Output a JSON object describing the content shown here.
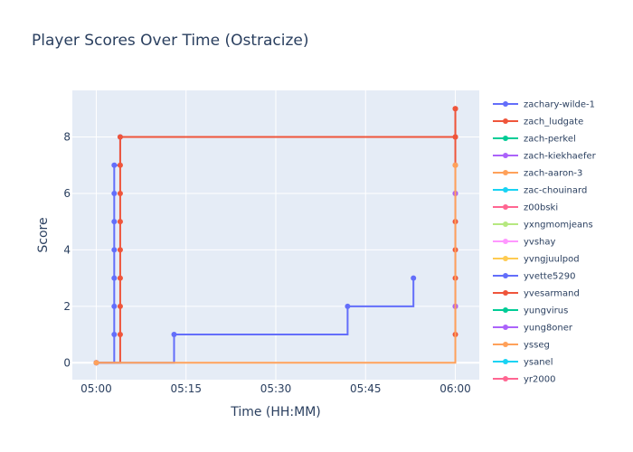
{
  "chart_data": {
    "type": "line",
    "line_shape": "step",
    "title": "Player Scores Over Time (Ostracize)",
    "xlabel": "Time (HH:MM)",
    "ylabel": "Score",
    "xlim": [
      "04:56",
      "06:04"
    ],
    "ylim": [
      -0.6,
      9.65
    ],
    "x_ticks": [
      "05:00",
      "05:15",
      "05:30",
      "05:45",
      "06:00"
    ],
    "y_ticks": [
      0,
      2,
      4,
      6,
      8
    ],
    "grid": true,
    "legend_position": "right",
    "legend_entries": [
      "zachary-wilde-1",
      "zach_ludgate",
      "zach-perkel",
      "zach-kiekhaefer",
      "zach-aaron-3",
      "zac-chouinard",
      "z00bski",
      "yxngmomjeans",
      "yvshay",
      "yvngjuulpod",
      "yvette5290",
      "yvesarmand",
      "yungvirus",
      "yung8oner",
      "ysseg",
      "ysanel",
      "yr2000"
    ],
    "colors": [
      "#636efa",
      "#ef553b",
      "#00cc96",
      "#ab63fa",
      "#ffa15a",
      "#19d3f3",
      "#ff6692",
      "#b6e880",
      "#ff97ff",
      "#fecb52"
    ],
    "plot_background": "#e5ecf6",
    "series": [
      {
        "name": "zachary-wilde-1",
        "color": "#636efa",
        "points": [
          {
            "x": "05:00",
            "y": 0
          },
          {
            "x": "05:03",
            "y": 1
          },
          {
            "x": "05:03",
            "y": 2
          },
          {
            "x": "05:03",
            "y": 3
          },
          {
            "x": "05:03",
            "y": 4
          },
          {
            "x": "05:03",
            "y": 5
          },
          {
            "x": "05:03",
            "y": 6
          },
          {
            "x": "05:03",
            "y": 7
          },
          {
            "x": "05:04",
            "y": 8
          }
        ]
      },
      {
        "name": "zach_ludgate",
        "color": "#ef553b",
        "points": [
          {
            "x": "05:00",
            "y": 0
          },
          {
            "x": "05:04",
            "y": 1
          },
          {
            "x": "05:04",
            "y": 2
          },
          {
            "x": "05:04",
            "y": 3
          },
          {
            "x": "05:04",
            "y": 4
          },
          {
            "x": "05:04",
            "y": 5
          },
          {
            "x": "05:04",
            "y": 6
          },
          {
            "x": "05:04",
            "y": 7
          },
          {
            "x": "05:04",
            "y": 8
          },
          {
            "x": "06:00",
            "y": 8
          },
          {
            "x": "06:00",
            "y": 9
          }
        ]
      },
      {
        "name": "yvette5290",
        "color": "#636efa",
        "points": [
          {
            "x": "05:00",
            "y": 0
          },
          {
            "x": "05:13",
            "y": 1
          },
          {
            "x": "05:42",
            "y": 2
          },
          {
            "x": "05:53",
            "y": 3
          }
        ]
      },
      {
        "name": "yvesarmand",
        "color": "#ef553b",
        "points": [
          {
            "x": "06:00",
            "y": 1
          },
          {
            "x": "06:00",
            "y": 2
          },
          {
            "x": "06:00",
            "y": 3
          },
          {
            "x": "06:00",
            "y": 4
          },
          {
            "x": "06:00",
            "y": 5
          },
          {
            "x": "06:00",
            "y": 6
          },
          {
            "x": "06:00",
            "y": 7
          },
          {
            "x": "06:00",
            "y": 8
          },
          {
            "x": "06:00",
            "y": 9
          }
        ]
      },
      {
        "name": "yung8oner",
        "color": "#ab63fa",
        "points": [
          {
            "x": "06:00",
            "y": 2
          },
          {
            "x": "06:00",
            "y": 6
          }
        ]
      },
      {
        "name": "zach-aaron-3",
        "color": "#ffa15a",
        "points": [
          {
            "x": "05:00",
            "y": 0
          },
          {
            "x": "06:00",
            "y": 7
          }
        ]
      }
    ]
  }
}
